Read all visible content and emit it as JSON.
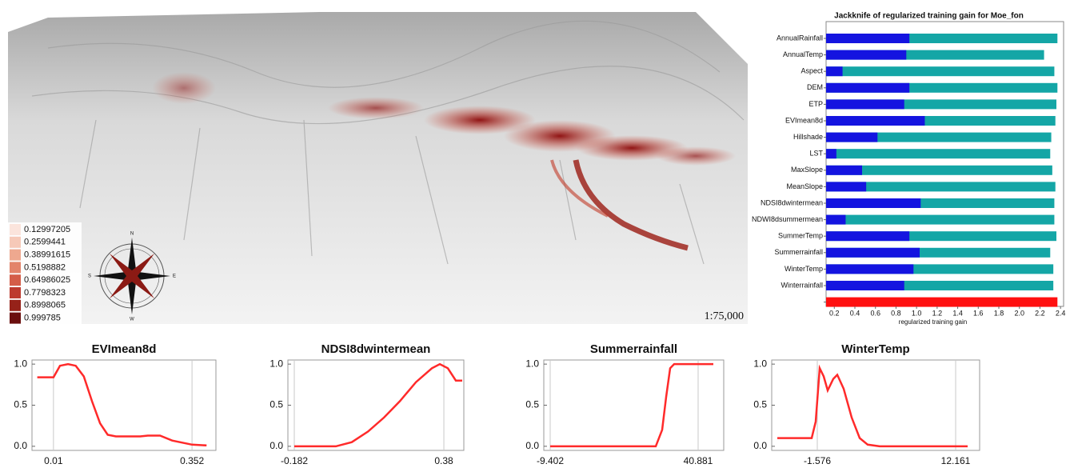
{
  "map": {
    "legend": [
      "0.12997205",
      "0.2599441",
      "0.38991615",
      "0.5198882",
      "0.64986025",
      "0.7798323",
      "0.8998065",
      "0.999785"
    ],
    "scale": "1:75,000",
    "compass": [
      "N",
      "E",
      "S",
      "W"
    ]
  },
  "chart_data": [
    {
      "type": "hbar",
      "title": "Jackknife of regularized training gain for Moe_fon",
      "x_label": "regularized training gain",
      "categories": [
        "AnnualRainfall",
        "AnnualTemp",
        "Aspect",
        "DEM",
        "ETP",
        "EVImean8d",
        "Hillshade",
        "LST",
        "MaxSlope",
        "MeanSlope",
        "NDSI8dwintermean",
        "NDWI8dsummermean",
        "SummerTemp",
        "Summerrainfall",
        "WinterTemp",
        "Winterrainfall",
        null
      ],
      "series": [
        {
          "color": "#14a6a6",
          "values": [
            2.37,
            2.24,
            2.34,
            2.37,
            2.36,
            2.35,
            2.31,
            2.3,
            2.32,
            2.35,
            2.34,
            2.34,
            2.36,
            2.3,
            2.33,
            2.33,
            null
          ]
        },
        {
          "color": "#1414e0",
          "values": [
            0.93,
            0.9,
            0.28,
            0.93,
            0.88,
            1.08,
            0.62,
            0.22,
            0.47,
            0.51,
            1.04,
            0.31,
            0.93,
            1.03,
            0.97,
            0.88,
            null
          ]
        },
        {
          "color": "#ff1010",
          "values": [
            null,
            null,
            null,
            null,
            null,
            null,
            null,
            null,
            null,
            null,
            null,
            null,
            null,
            null,
            null,
            null,
            2.37
          ]
        }
      ],
      "xlim": [
        0.12,
        2.43
      ],
      "xticks": [
        0.2,
        0.4,
        0.6,
        0.8,
        {
          "value": 1,
          "label": "1.0"
        },
        1.2,
        1.4,
        1.6,
        1.8,
        {
          "value": 2,
          "label": "2.0"
        },
        2.2,
        2.4
      ]
    },
    {
      "type": "line",
      "title": "EVImean8d",
      "color": "#ff2a2a",
      "grid": true,
      "x": [
        -0.03,
        0.01,
        0.026,
        0.046,
        0.065,
        0.085,
        0.105,
        0.125,
        0.144,
        0.164,
        0.224,
        0.243,
        0.273,
        0.303,
        0.352,
        0.388
      ],
      "values": [
        0.84,
        0.84,
        0.98,
        1.0,
        0.98,
        0.85,
        0.55,
        0.28,
        0.14,
        0.12,
        0.12,
        0.13,
        0.13,
        0.07,
        0.02,
        0.01
      ],
      "xlim": [
        -0.043,
        0.411
      ],
      "xticks": [
        0.01,
        0.352
      ],
      "ylim": [
        -0.05,
        1.05
      ],
      "yticks": [
        {
          "value": 0,
          "label": "0.0"
        },
        0.5,
        {
          "value": 1,
          "label": "1.0"
        }
      ]
    },
    {
      "type": "line",
      "title": "NDSI8dwintermean",
      "color": "#ff2a2a",
      "grid": true,
      "x": [
        -0.182,
        -0.026,
        0.034,
        0.095,
        0.155,
        0.215,
        0.275,
        0.335,
        0.365,
        0.395,
        0.425,
        0.449
      ],
      "values": [
        0.0,
        0.0,
        0.05,
        0.18,
        0.35,
        0.55,
        0.78,
        0.95,
        1.0,
        0.95,
        0.8,
        0.8
      ],
      "xlim": [
        -0.206,
        0.455
      ],
      "xticks": [
        -0.182,
        0.38
      ],
      "ylim": [
        -0.05,
        1.05
      ],
      "yticks": [
        {
          "value": 0,
          "label": "0.0"
        },
        0.5,
        {
          "value": 1,
          "label": "1.0"
        }
      ]
    },
    {
      "type": "line",
      "title": "Summerrainfall",
      "color": "#ff2a2a",
      "grid": true,
      "x": [
        -9.402,
        26.48,
        28.65,
        30.01,
        31.37,
        32.73,
        46.05
      ],
      "values": [
        0.0,
        0.0,
        0.2,
        0.6,
        0.95,
        1.0,
        1.0
      ],
      "xlim": [
        -11.577,
        49.579
      ],
      "xticks": [
        -9.402,
        40.881
      ],
      "ylim": [
        -0.05,
        1.05
      ],
      "yticks": [
        {
          "value": 0,
          "label": "0.0"
        },
        0.5,
        {
          "value": 1,
          "label": "1.0"
        }
      ]
    },
    {
      "type": "line",
      "title": "WinterTemp",
      "color": "#ff2a2a",
      "grid": true,
      "x": [
        -5.546,
        -2.132,
        -1.735,
        -1.338,
        -0.941,
        -0.544,
        0.012,
        0.409,
        1.044,
        1.838,
        2.632,
        3.426,
        4.617,
        13.352
      ],
      "values": [
        0.1,
        0.1,
        0.3,
        0.95,
        0.85,
        0.68,
        0.82,
        0.87,
        0.7,
        0.35,
        0.1,
        0.02,
        0.0,
        0.0
      ],
      "xlim": [
        -6.102,
        14.543
      ],
      "xticks": [
        -1.576,
        12.161
      ],
      "ylim": [
        -0.05,
        1.05
      ],
      "yticks": [
        {
          "value": 0,
          "label": "0.0"
        },
        0.5,
        {
          "value": 1,
          "label": "1.0"
        }
      ]
    }
  ]
}
